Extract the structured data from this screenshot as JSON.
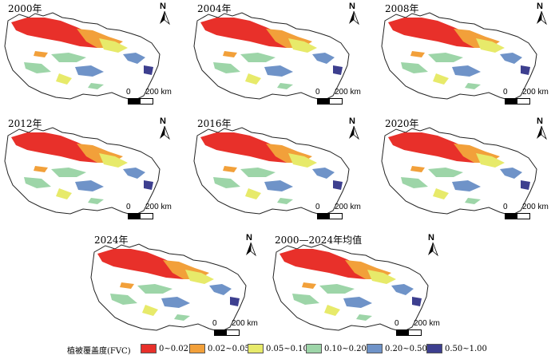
{
  "panels": [
    {
      "title": "2000年"
    },
    {
      "title": "2004年"
    },
    {
      "title": "2008年"
    },
    {
      "title": "2012年"
    },
    {
      "title": "2016年"
    },
    {
      "title": "2020年"
    },
    {
      "title": "2024年"
    },
    {
      "title": "2000—2024年均值"
    }
  ],
  "north_label": "N",
  "scale": {
    "zero": "0",
    "end": "200 km"
  },
  "legend": {
    "title": "植被覆盖度(FVC)",
    "classes": [
      {
        "label": "0~0.02",
        "color": "#e8302a"
      },
      {
        "label": "0.02~0.05",
        "color": "#f2a03a"
      },
      {
        "label": "0.05~0.10",
        "color": "#e7ea6a"
      },
      {
        "label": "0.10~0.20",
        "color": "#9dd5a8"
      },
      {
        "label": "0.20~0.50",
        "color": "#6f93c8"
      },
      {
        "label": "0.50~1.00",
        "color": "#3d3f8f"
      }
    ]
  }
}
